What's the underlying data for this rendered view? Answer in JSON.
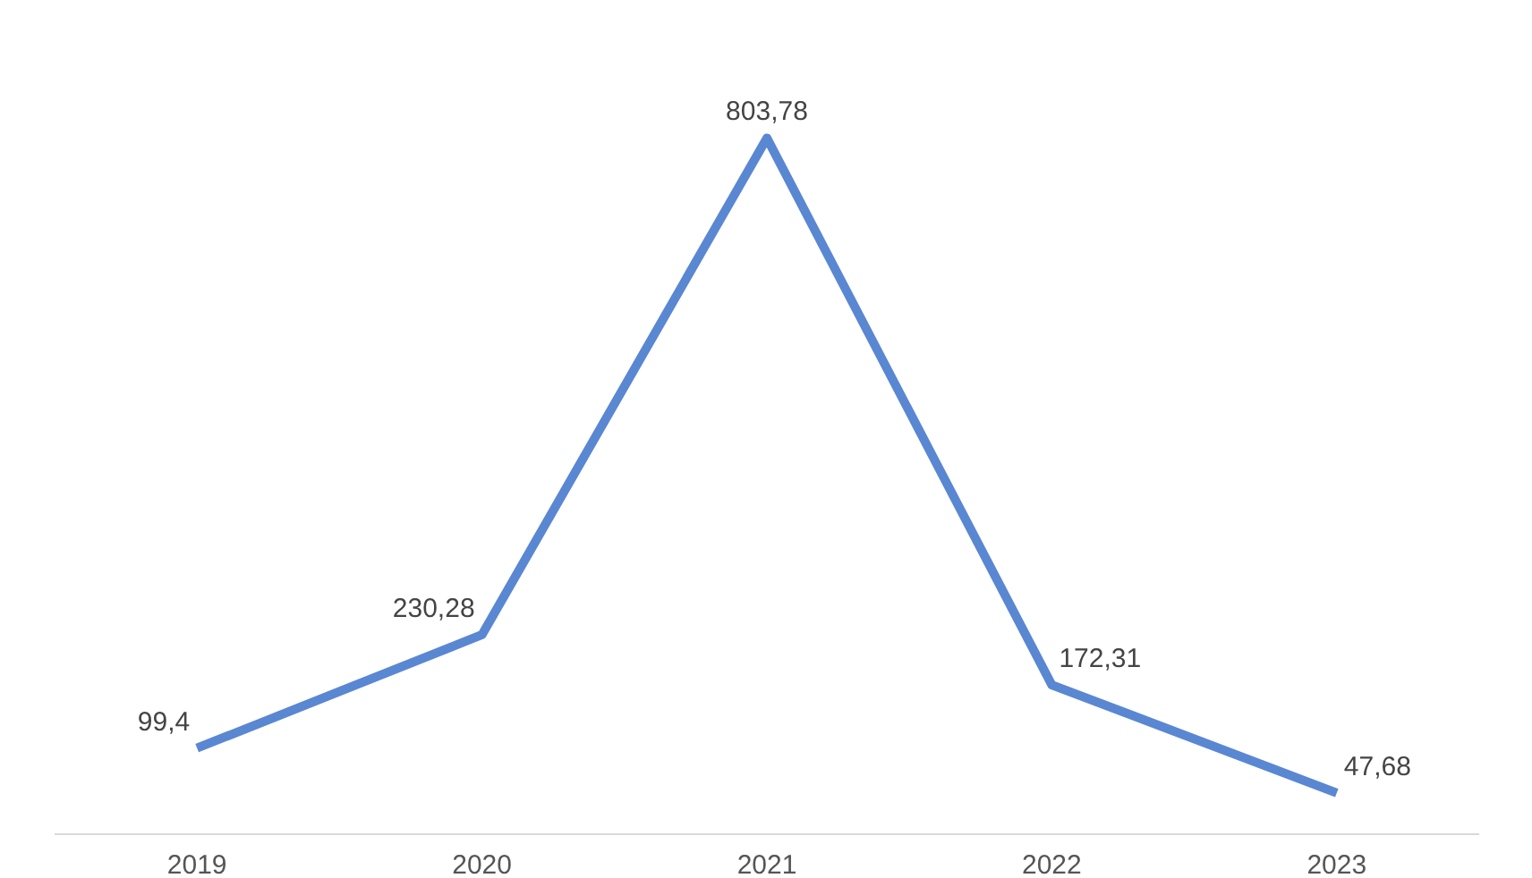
{
  "chart_data": {
    "type": "line",
    "categories": [
      "2019",
      "2020",
      "2021",
      "2022",
      "2023"
    ],
    "series": [
      {
        "color": "#5a87d2",
        "values": [
          99.4,
          230.28,
          803.78,
          172.31,
          47.68
        ],
        "value_labels": [
          "99,4",
          "230,28",
          "803,78",
          "172,31",
          "47,68"
        ]
      }
    ],
    "grid": false,
    "marker": "none",
    "line_style": "solid",
    "tick_labels": "x"
  }
}
